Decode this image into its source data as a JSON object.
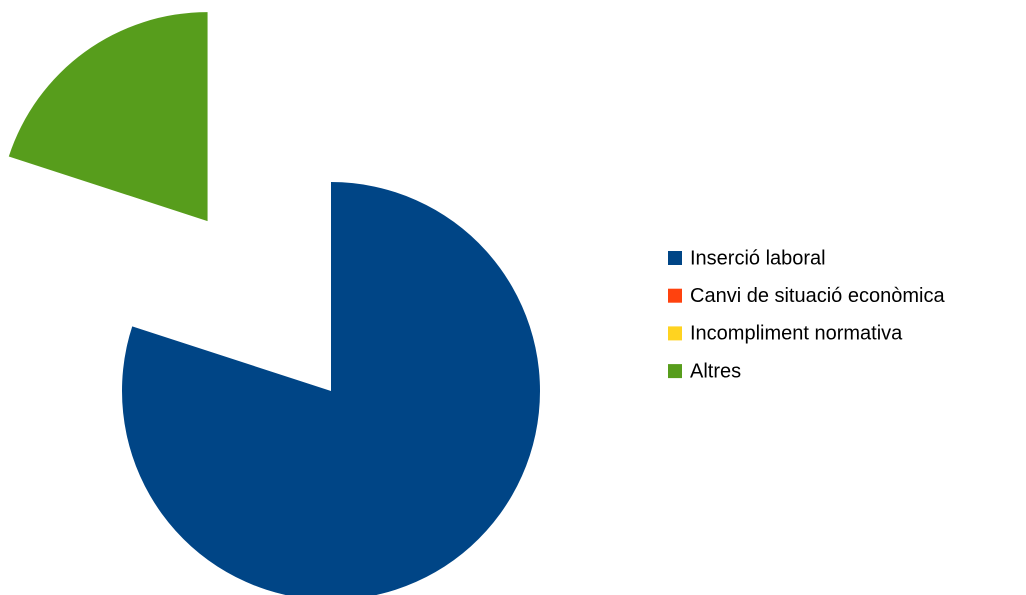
{
  "chart_data": {
    "type": "pie",
    "categories": [
      "Inserció laboral",
      "Canvi de situació econòmica",
      "Incompliment normativa",
      "Altres"
    ],
    "values": [
      80,
      0,
      0,
      20
    ],
    "colors": [
      "#004586",
      "#ff420e",
      "#ffd320",
      "#579d1c"
    ],
    "explode": [
      false,
      false,
      false,
      true
    ],
    "legend": "right"
  }
}
